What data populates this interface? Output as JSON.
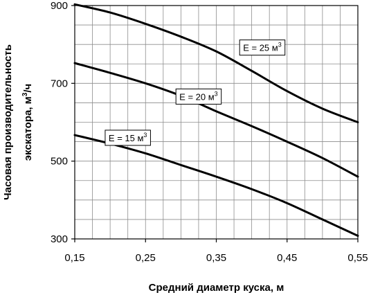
{
  "chart_data": {
    "type": "line",
    "xlabel": "Средний диаметр куска, м",
    "ylabel_line1": "Часовая производительность",
    "ylabel_line2_prefix": "экскатора, м",
    "ylabel_line2_sup": "3",
    "ylabel_line2_suffix": "/ч",
    "xlim": [
      0.15,
      0.55
    ],
    "ylim": [
      300,
      900
    ],
    "x_ticks": [
      {
        "value": 0.15,
        "label": "0,15"
      },
      {
        "value": 0.25,
        "label": "0,25"
      },
      {
        "value": 0.35,
        "label": "0,35"
      },
      {
        "value": 0.45,
        "label": "0,45"
      },
      {
        "value": 0.55,
        "label": "0,55"
      }
    ],
    "y_ticks": [
      {
        "value": 300,
        "label": "300"
      },
      {
        "value": 500,
        "label": "500"
      },
      {
        "value": 700,
        "label": "700"
      },
      {
        "value": 900,
        "label": "900"
      }
    ],
    "grid": true,
    "grid_x_step": 0.025,
    "grid_y_step": 50,
    "series": [
      {
        "name": "E = 15 м",
        "name_sup": "3",
        "label_at": {
          "x": 0.225,
          "y": 560
        },
        "x": [
          0.15,
          0.2,
          0.25,
          0.3,
          0.35,
          0.4,
          0.45,
          0.5,
          0.55
        ],
        "y": [
          567,
          545,
          520,
          490,
          460,
          428,
          392,
          350,
          308
        ]
      },
      {
        "name": "E = 20 м",
        "name_sup": "3",
        "label_at": {
          "x": 0.325,
          "y": 666
        },
        "x": [
          0.15,
          0.2,
          0.25,
          0.3,
          0.35,
          0.4,
          0.45,
          0.5,
          0.55
        ],
        "y": [
          752,
          727,
          700,
          668,
          628,
          590,
          550,
          508,
          460
        ]
      },
      {
        "name": "E = 25 м",
        "name_sup": "3",
        "label_at": {
          "x": 0.415,
          "y": 792
        },
        "x": [
          0.15,
          0.2,
          0.25,
          0.3,
          0.35,
          0.4,
          0.45,
          0.5,
          0.55
        ],
        "y": [
          903,
          882,
          853,
          820,
          782,
          732,
          680,
          635,
          600
        ]
      }
    ]
  }
}
